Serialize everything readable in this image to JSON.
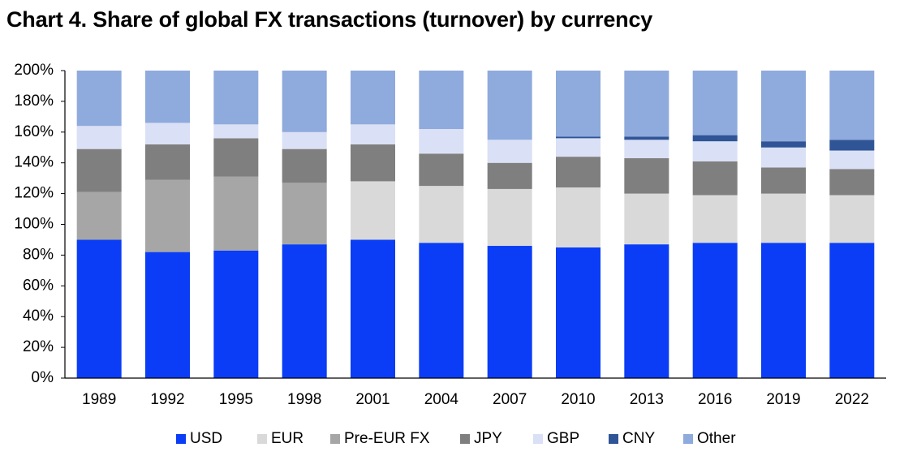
{
  "page_title": "Chart 4. Share of global FX transactions (turnover) by currency",
  "chart_data": {
    "type": "bar",
    "stacked": true,
    "title": "Chart 4. Share of global FX transactions (turnover) by currency",
    "xlabel": "",
    "ylabel": "",
    "ylim": [
      0,
      200
    ],
    "y_ticks": [
      "0%",
      "20%",
      "40%",
      "60%",
      "80%",
      "100%",
      "120%",
      "140%",
      "160%",
      "180%",
      "200%"
    ],
    "categories": [
      "1989",
      "1992",
      "1995",
      "1998",
      "2001",
      "2004",
      "2007",
      "2010",
      "2013",
      "2016",
      "2019",
      "2022"
    ],
    "series": [
      {
        "name": "USD",
        "color": "#0A3DF5",
        "values": [
          90,
          82,
          83,
          87,
          90,
          88,
          86,
          85,
          87,
          88,
          88,
          88
        ]
      },
      {
        "name": "EUR",
        "color": "#D9D9D9",
        "values": [
          0,
          0,
          0,
          0,
          38,
          37,
          37,
          39,
          33,
          31,
          32,
          31
        ]
      },
      {
        "name": "Pre-EUR FX",
        "color": "#A6A6A6",
        "values": [
          31,
          47,
          48,
          40,
          0,
          0,
          0,
          0,
          0,
          0,
          0,
          0
        ]
      },
      {
        "name": "JPY",
        "color": "#7F7F7F",
        "values": [
          28,
          23,
          25,
          22,
          24,
          21,
          17,
          20,
          23,
          22,
          17,
          17
        ]
      },
      {
        "name": "GBP",
        "color": "#DAE0F5",
        "values": [
          15,
          14,
          9,
          11,
          13,
          16,
          15,
          12,
          12,
          13,
          13,
          12
        ]
      },
      {
        "name": "CNY",
        "color": "#2F5597",
        "values": [
          0,
          0,
          0,
          0,
          0,
          0,
          0,
          1,
          2,
          4,
          4,
          7
        ]
      },
      {
        "name": "Other",
        "color": "#8FAADC",
        "values": [
          36,
          34,
          35,
          40,
          35,
          38,
          45,
          43,
          43,
          42,
          46,
          45
        ]
      }
    ],
    "grid": false,
    "legend_position": "bottom"
  }
}
